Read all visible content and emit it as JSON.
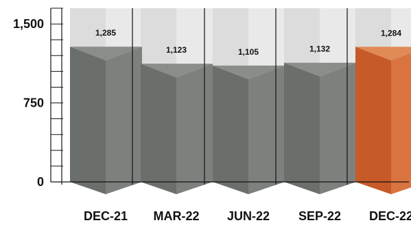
{
  "chart_data": {
    "type": "bar",
    "categories": [
      "DEC-21",
      "MAR-22",
      "JUN-22",
      "SEP-22",
      "DEC-22"
    ],
    "values": [
      1285,
      1123,
      1105,
      1132,
      1284
    ],
    "data_labels": [
      "1,285",
      "1,123",
      "1,105",
      "1,132",
      "1,284"
    ],
    "ylim": [
      0,
      1650
    ],
    "y_ticks": [
      {
        "value": 0,
        "label": "0"
      },
      {
        "value": 750,
        "label": "750"
      },
      {
        "value": 1500,
        "label": "1,500"
      }
    ],
    "minor_tick_step": 150,
    "grid": false,
    "legend": "none",
    "style": "3d-prism",
    "colors": {
      "default_front": "#6b6f6c",
      "default_side": "#7d817e",
      "highlight_front": "#c65a28",
      "highlight_side": "#d9733f",
      "background_column": "#dcdcdc",
      "background_column_side": "#e9e9e9",
      "axis": "#111111",
      "separator": "#111111"
    },
    "highlight_index": 4
  }
}
